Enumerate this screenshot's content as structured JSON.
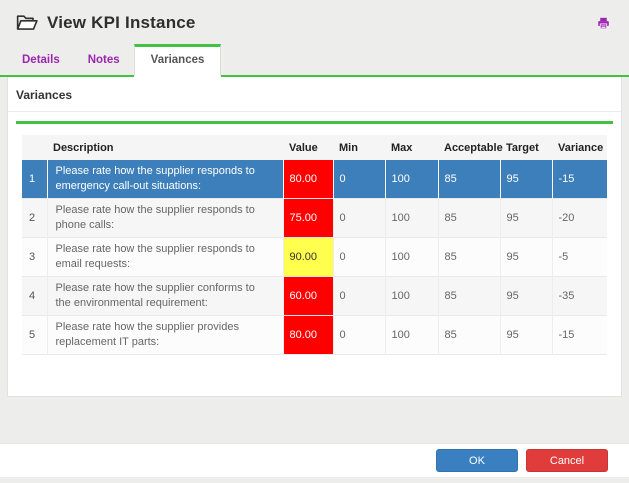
{
  "window": {
    "title": "View KPI Instance"
  },
  "tabs": [
    {
      "label": "Details",
      "active": false
    },
    {
      "label": "Notes",
      "active": false
    },
    {
      "label": "Variances",
      "active": true
    }
  ],
  "section": {
    "heading": "Variances"
  },
  "table": {
    "columns": [
      "",
      "Description",
      "Value",
      "Min",
      "Max",
      "Acceptable",
      "Target",
      "Variance"
    ],
    "rows": [
      {
        "num": "1",
        "description": "Please rate how the supplier responds to emergency call-out situations:",
        "value": "80.00",
        "value_style": "red",
        "min": "0",
        "max": "100",
        "acceptable": "85",
        "target": "95",
        "variance": "-15",
        "selected": true
      },
      {
        "num": "2",
        "description": "Please rate how the supplier responds to phone calls:",
        "value": "75.00",
        "value_style": "red",
        "min": "0",
        "max": "100",
        "acceptable": "85",
        "target": "95",
        "variance": "-20",
        "selected": false
      },
      {
        "num": "3",
        "description": "Please rate how the supplier responds to email requests:",
        "value": "90.00",
        "value_style": "yellow",
        "min": "0",
        "max": "100",
        "acceptable": "85",
        "target": "95",
        "variance": "-5",
        "selected": false
      },
      {
        "num": "4",
        "description": "Please rate how the supplier conforms to the environmental requirement:",
        "value": "60.00",
        "value_style": "red",
        "min": "0",
        "max": "100",
        "acceptable": "85",
        "target": "95",
        "variance": "-35",
        "selected": false
      },
      {
        "num": "5",
        "description": "Please rate how the supplier provides replacement IT parts:",
        "value": "80.00",
        "value_style": "red",
        "min": "0",
        "max": "100",
        "acceptable": "85",
        "target": "95",
        "variance": "-15",
        "selected": false
      }
    ]
  },
  "footer": {
    "ok_label": "OK",
    "cancel_label": "Cancel"
  },
  "colors": {
    "accent_green": "#42c142",
    "accent_purple": "#9b26af",
    "selected_row_blue": "#3d7fba",
    "value_red": "#fe0000",
    "value_yellow": "#ffff4d",
    "ok_blue": "#3a80c1",
    "cancel_red": "#e03c3c"
  }
}
